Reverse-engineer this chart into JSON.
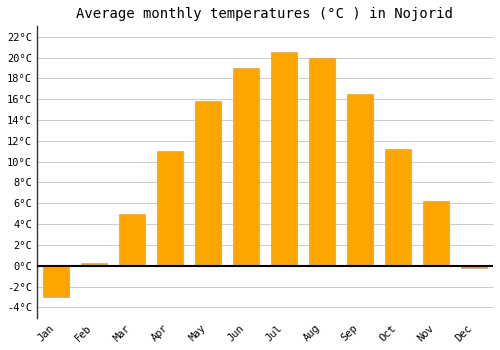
{
  "title": "Average monthly temperatures (°C ) in Nojorid",
  "months": [
    "Jan",
    "Feb",
    "Mar",
    "Apr",
    "May",
    "Jun",
    "Jul",
    "Aug",
    "Sep",
    "Oct",
    "Nov",
    "Dec"
  ],
  "values": [
    -3.0,
    0.3,
    5.0,
    11.0,
    15.8,
    19.0,
    20.5,
    20.0,
    16.5,
    11.2,
    6.2,
    -0.2
  ],
  "bar_color": "#FFA500",
  "bar_edge_color": "#aaaaaa",
  "background_color": "#ffffff",
  "grid_color": "#cccccc",
  "ylim": [
    -5,
    23
  ],
  "yticks": [
    -4,
    -2,
    0,
    2,
    4,
    6,
    8,
    10,
    12,
    14,
    16,
    18,
    20,
    22
  ],
  "title_fontsize": 10,
  "tick_fontsize": 7.5,
  "zero_line_color": "#000000",
  "font_family": "monospace"
}
